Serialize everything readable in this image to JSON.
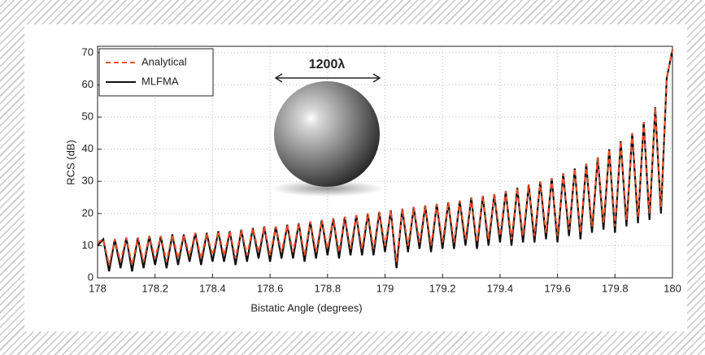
{
  "chart_data": {
    "type": "line",
    "xlabel": "Bistatic Angle (degrees)",
    "ylabel": "RCS (dB)",
    "annotation": "1200λ",
    "legend": "upper left",
    "grid": true,
    "xlim": [
      178,
      180
    ],
    "xticks": [
      178,
      178.2,
      178.4,
      178.6,
      178.8,
      179,
      179.2,
      179.4,
      179.6,
      179.8,
      180
    ],
    "ylim": [
      0,
      72
    ],
    "yticks": [
      0,
      10,
      20,
      30,
      40,
      50,
      60,
      70
    ],
    "x": [
      178,
      178.02,
      178.04,
      178.06,
      178.08,
      178.1,
      178.12,
      178.14,
      178.16,
      178.18,
      178.2,
      178.22,
      178.24,
      178.26,
      178.28,
      178.3,
      178.32,
      178.34,
      178.36,
      178.38,
      178.4,
      178.42,
      178.44,
      178.46,
      178.48,
      178.5,
      178.52,
      178.54,
      178.56,
      178.58,
      178.6,
      178.62,
      178.64,
      178.66,
      178.68,
      178.7,
      178.72,
      178.74,
      178.76,
      178.78,
      178.8,
      178.82,
      178.84,
      178.86,
      178.88,
      178.9,
      178.92,
      178.94,
      178.96,
      178.98,
      179,
      179.02,
      179.04,
      179.06,
      179.08,
      179.1,
      179.12,
      179.14,
      179.16,
      179.18,
      179.2,
      179.22,
      179.24,
      179.26,
      179.28,
      179.3,
      179.32,
      179.34,
      179.36,
      179.38,
      179.4,
      179.42,
      179.44,
      179.46,
      179.48,
      179.5,
      179.52,
      179.54,
      179.56,
      179.58,
      179.6,
      179.62,
      179.64,
      179.66,
      179.68,
      179.7,
      179.72,
      179.74,
      179.76,
      179.78,
      179.8,
      179.82,
      179.84,
      179.86,
      179.88,
      179.9,
      179.92,
      179.94,
      179.96,
      179.98,
      180
    ],
    "series": [
      {
        "name": "MLFMA",
        "color": "#111111",
        "dash": false,
        "values": [
          10,
          12,
          2,
          12,
          3,
          12.5,
          2,
          12.5,
          3,
          13,
          4,
          13,
          3,
          13.5,
          4,
          13.5,
          5,
          14,
          4,
          14,
          5,
          14.5,
          5,
          14.5,
          4,
          15,
          5,
          15.5,
          6,
          16,
          5,
          16,
          6,
          16.5,
          6,
          17,
          5,
          17.5,
          6,
          18,
          7,
          18.5,
          6,
          19,
          7,
          19.5,
          7,
          20,
          7,
          20.5,
          8,
          21,
          3,
          21.5,
          8,
          22,
          9,
          22.5,
          8,
          23,
          9,
          23.5,
          9,
          24,
          10,
          25,
          9,
          25.5,
          10,
          26,
          11,
          27,
          10,
          28,
          11,
          29,
          11,
          30,
          12,
          31,
          11,
          32.5,
          13,
          34,
          12,
          35.5,
          14,
          37.5,
          15,
          40,
          14,
          42.5,
          16,
          45,
          17,
          48.5,
          18,
          53,
          20,
          62,
          71
        ]
      },
      {
        "name": "Analytical",
        "color": "#f0502a",
        "dash": true,
        "values": [
          11,
          12,
          4,
          12,
          5,
          12.5,
          4,
          12.5,
          5,
          13,
          6,
          13,
          5,
          13.5,
          6,
          13.5,
          7,
          14,
          6,
          14,
          7,
          14.5,
          7,
          14.5,
          6,
          15,
          7,
          15.5,
          8,
          16,
          7,
          16,
          8,
          16.5,
          8,
          17,
          7,
          17.5,
          8,
          18,
          9,
          18.5,
          8,
          19,
          9,
          19.5,
          9,
          20,
          9,
          20.5,
          10,
          21,
          5,
          21.5,
          10,
          22,
          11,
          22.5,
          10,
          23,
          11,
          23.5,
          11,
          24,
          12,
          25,
          11,
          25.5,
          12,
          26,
          13,
          27,
          12,
          28,
          13,
          29,
          13,
          30,
          14,
          31,
          13,
          32.5,
          15,
          34,
          14,
          35.5,
          16,
          37.5,
          17,
          40,
          16,
          42.5,
          18,
          45,
          19,
          48.5,
          20,
          53,
          22,
          62,
          71
        ]
      }
    ]
  }
}
